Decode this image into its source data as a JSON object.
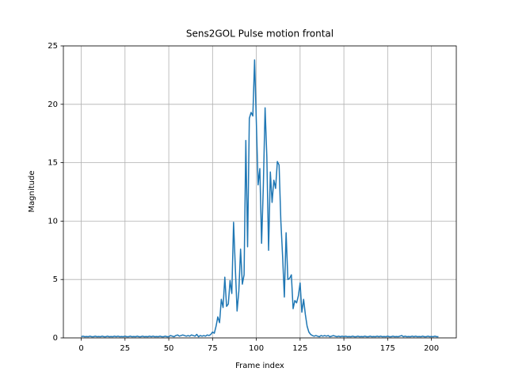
{
  "chart_data": {
    "type": "line",
    "title": "Sens2GOL Pulse motion frontal",
    "x_label": "Frame index",
    "y_label": "Magnitude",
    "color": "#1f77b4",
    "grid": true,
    "xlim": [
      -10.2,
      214.2
    ],
    "xticks": [
      0,
      25,
      50,
      75,
      100,
      125,
      150,
      175,
      200
    ],
    "ylim": [
      0,
      25
    ],
    "yticks": [
      0,
      5,
      10,
      15,
      20,
      25
    ],
    "x": [
      0,
      1,
      2,
      3,
      4,
      5,
      6,
      7,
      8,
      9,
      10,
      11,
      12,
      13,
      14,
      15,
      16,
      17,
      18,
      19,
      20,
      21,
      22,
      23,
      24,
      25,
      26,
      27,
      28,
      29,
      30,
      31,
      32,
      33,
      34,
      35,
      36,
      37,
      38,
      39,
      40,
      41,
      42,
      43,
      44,
      45,
      46,
      47,
      48,
      49,
      50,
      51,
      52,
      53,
      54,
      55,
      56,
      57,
      58,
      59,
      60,
      61,
      62,
      63,
      64,
      65,
      66,
      67,
      68,
      69,
      70,
      71,
      72,
      73,
      74,
      75,
      76,
      77,
      78,
      79,
      80,
      81,
      82,
      83,
      84,
      85,
      86,
      87,
      88,
      89,
      90,
      91,
      92,
      93,
      94,
      95,
      96,
      97,
      98,
      99,
      100,
      101,
      102,
      103,
      104,
      105,
      106,
      107,
      108,
      109,
      110,
      111,
      112,
      113,
      114,
      115,
      116,
      117,
      118,
      119,
      120,
      121,
      122,
      123,
      124,
      125,
      126,
      127,
      128,
      129,
      130,
      131,
      132,
      133,
      134,
      135,
      136,
      137,
      138,
      139,
      140,
      141,
      142,
      143,
      144,
      145,
      146,
      147,
      148,
      149,
      150,
      151,
      152,
      153,
      154,
      155,
      156,
      157,
      158,
      159,
      160,
      161,
      162,
      163,
      164,
      165,
      166,
      167,
      168,
      169,
      170,
      171,
      172,
      173,
      174,
      175,
      176,
      177,
      178,
      179,
      180,
      181,
      182,
      183,
      184,
      185,
      186,
      187,
      188,
      189,
      190,
      191,
      192,
      193,
      194,
      195,
      196,
      197,
      198,
      199,
      200,
      201,
      202,
      203,
      204
    ],
    "values": [
      0.1,
      0.15,
      0.1,
      0.12,
      0.1,
      0.15,
      0.1,
      0.1,
      0.15,
      0.1,
      0.12,
      0.1,
      0.15,
      0.1,
      0.1,
      0.15,
      0.1,
      0.12,
      0.1,
      0.15,
      0.1,
      0.15,
      0.1,
      0.12,
      0.1,
      0.15,
      0.1,
      0.1,
      0.15,
      0.1,
      0.12,
      0.1,
      0.15,
      0.1,
      0.1,
      0.15,
      0.1,
      0.12,
      0.1,
      0.15,
      0.1,
      0.15,
      0.1,
      0.12,
      0.1,
      0.15,
      0.1,
      0.1,
      0.15,
      0.1,
      0.1,
      0.2,
      0.15,
      0.1,
      0.2,
      0.25,
      0.15,
      0.2,
      0.25,
      0.2,
      0.15,
      0.2,
      0.15,
      0.25,
      0.2,
      0.15,
      0.3,
      0.1,
      0.2,
      0.15,
      0.2,
      0.15,
      0.25,
      0.2,
      0.3,
      0.5,
      0.4,
      1.0,
      1.8,
      1.3,
      3.3,
      2.6,
      5.2,
      2.7,
      2.9,
      4.9,
      3.8,
      9.9,
      6.0,
      2.3,
      4.0,
      7.6,
      4.6,
      5.4,
      16.9,
      7.8,
      18.8,
      19.3,
      19.0,
      23.8,
      18.5,
      13.1,
      14.5,
      8.1,
      13.0,
      19.7,
      15.5,
      7.5,
      14.2,
      11.6,
      13.5,
      12.8,
      15.1,
      14.8,
      10.0,
      7.0,
      3.5,
      9.0,
      5.0,
      5.1,
      5.4,
      2.5,
      3.2,
      3.0,
      3.6,
      4.7,
      2.2,
      3.3,
      2.0,
      1.0,
      0.5,
      0.3,
      0.2,
      0.15,
      0.2,
      0.15,
      0.1,
      0.2,
      0.15,
      0.2,
      0.15,
      0.2,
      0.1,
      0.15,
      0.2,
      0.15,
      0.1,
      0.15,
      0.1,
      0.15,
      0.1,
      0.15,
      0.1,
      0.12,
      0.1,
      0.15,
      0.1,
      0.1,
      0.15,
      0.1,
      0.12,
      0.1,
      0.15,
      0.1,
      0.1,
      0.15,
      0.1,
      0.12,
      0.1,
      0.15,
      0.1,
      0.15,
      0.1,
      0.12,
      0.1,
      0.15,
      0.1,
      0.1,
      0.15,
      0.1,
      0.12,
      0.1,
      0.15,
      0.2,
      0.1,
      0.15,
      0.1,
      0.12,
      0.1,
      0.15,
      0.1,
      0.15,
      0.1,
      0.12,
      0.1,
      0.15,
      0.1,
      0.1,
      0.15,
      0.1,
      0.12,
      0.1,
      0.15,
      0.1,
      0.1
    ]
  }
}
